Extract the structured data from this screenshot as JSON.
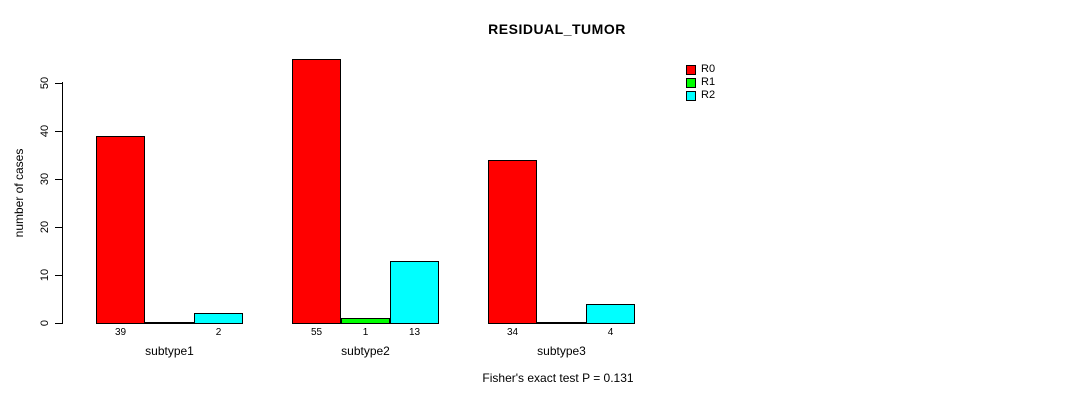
{
  "chart_data": {
    "type": "bar",
    "title": "RESIDUAL_TUMOR",
    "ylabel": "number of cases",
    "xlabel": "",
    "categories": [
      "subtype1",
      "subtype2",
      "subtype3"
    ],
    "series": [
      {
        "name": "R0",
        "color": "#FF0000",
        "values": [
          39,
          55,
          34
        ]
      },
      {
        "name": "R1",
        "color": "#00FF00",
        "values": [
          0,
          1,
          0
        ]
      },
      {
        "name": "R2",
        "color": "#00FFFF",
        "values": [
          2,
          13,
          4
        ]
      }
    ],
    "bar_value_labels": [
      [
        "39",
        "",
        "2"
      ],
      [
        "55",
        "1",
        "13"
      ],
      [
        "34",
        "",
        "4"
      ]
    ],
    "yticks": [
      0,
      10,
      20,
      30,
      40,
      50
    ],
    "ylim": [
      0,
      50
    ],
    "grid": false,
    "legend_position": "topright",
    "annotation": "Fisher's exact test P = 0.131",
    "background_color": "#FFFFFF",
    "axis_color": "#000000"
  }
}
